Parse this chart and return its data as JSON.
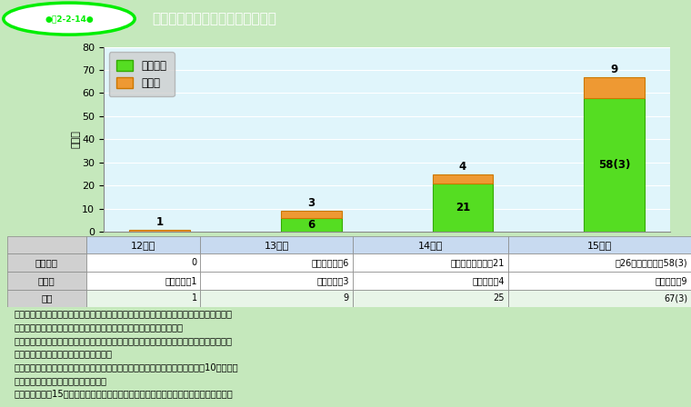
{
  "title_main": "教員出身でない者の校長任用実績",
  "title_badge": "●図2-2-14●",
  "categories": [
    "12年度",
    "13年度",
    "14年度",
    "15年度"
  ],
  "minkan_values": [
    0,
    6,
    21,
    58
  ],
  "sonota_values": [
    1,
    3,
    4,
    9
  ],
  "minkan_label": "民間人等",
  "sonota_label": "その他",
  "minkan_color": "#55dd22",
  "minkan_edge": "#33aa00",
  "sonota_color": "#ee9933",
  "sonota_edge": "#cc7700",
  "ylabel": "（人）",
  "ylim": [
    0,
    80
  ],
  "yticks": [
    0,
    10,
    20,
    30,
    40,
    50,
    60,
    70,
    80
  ],
  "chart_bg": "#e0f5fb",
  "outer_bg": "#c5e8bc",
  "header_bg": "#00ee00",
  "table_header_bg": "#d0d0d0",
  "table_col_bg": "#c8daf0",
  "table_white": "#ffffff",
  "table_green": "#e8f5e8",
  "bar_labels_minkan": [
    "0",
    "6",
    "21",
    "58(3)"
  ],
  "bar_labels_sonota": [
    "1",
    "3",
    "4",
    "9"
  ],
  "table_rows": [
    "民間人等",
    "その他",
    "合計"
  ],
  "table_data": [
    [
      "",
      "0",
      "（４都県）　6",
      "（９都府県市）　21",
      "（26都道府県市） 58(3)"
    ],
    [
      "（１県）　1",
      "（３県）　3",
      "（４県）　4",
      "（６県）　9"
    ],
    [
      "1",
      "9",
      "25",
      "67(3)"
    ]
  ],
  "notes_line1": "（注）　１　数字は各年度の４月１日時点までにおける校長への任用実績の総数であり，",
  "notes_line2": "　　　　　人事異動等により既に校長職にない者の数も含んでいる。",
  "notes_line3": "　　　２　「民間人等」とは，原則として，教員免許状を持たず，「教育に関する職」に",
  "notes_line4": "　　　　　就いた経験がない者をいう。",
  "notes_line5": "　　　３　「その他」とは，教員免許状を持たないが，「教育に関する職」に10年以上就",
  "notes_line6": "　　　　　いた経験がある者をいう。",
  "notes_line7": "　　　４　平成15年４月１日現在，文部科学省において把握している者の状況である。"
}
